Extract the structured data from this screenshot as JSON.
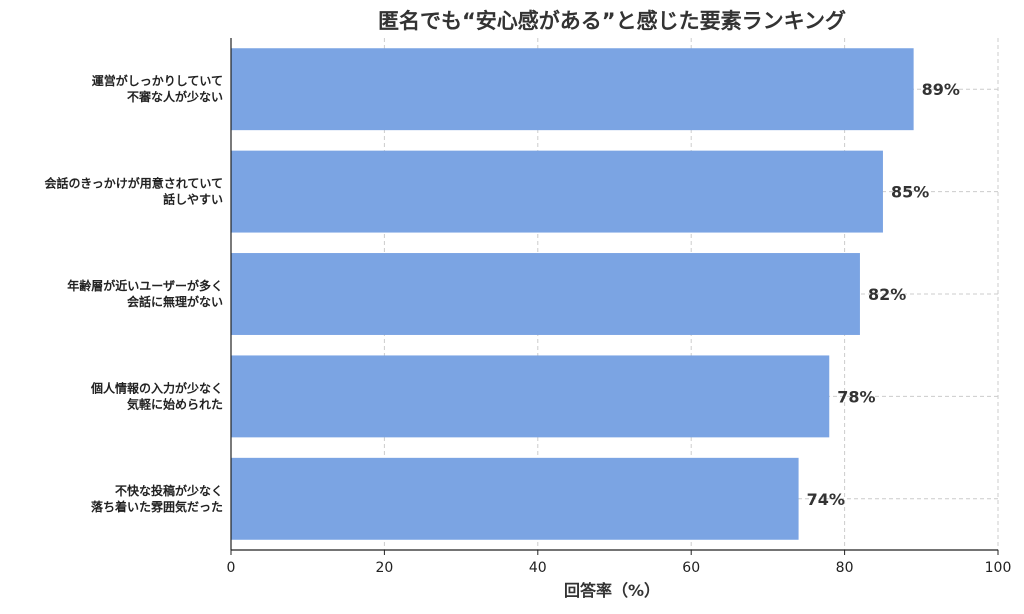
{
  "chart_data": {
    "type": "bar",
    "orientation": "horizontal",
    "title": "匿名でも“安心感がある”と感じた要素ランキング",
    "xlabel": "回答率（%）",
    "ylabel": "",
    "categories": [
      [
        "運営がしっかりしていて",
        "不審な人が少ない"
      ],
      [
        "会話のきっかけが用意されていて",
        "話しやすい"
      ],
      [
        "年齢層が近いユーザーが多く",
        "会話に無理がない"
      ],
      [
        "個人情報の入力が少なく",
        "気軽に始められた"
      ],
      [
        "不快な投稿が少なく",
        "落ち着いた雰囲気だった"
      ]
    ],
    "values": [
      89,
      85,
      82,
      78,
      74
    ],
    "value_labels": [
      "89%",
      "85%",
      "82%",
      "78%",
      "74%"
    ],
    "xlim": [
      0,
      100
    ],
    "xticks": [
      0,
      20,
      40,
      60,
      80,
      100
    ],
    "xtick_labels": [
      "0",
      "20",
      "40",
      "60",
      "80",
      "100"
    ],
    "grid": true,
    "bar_color": "#7ba4e3"
  }
}
